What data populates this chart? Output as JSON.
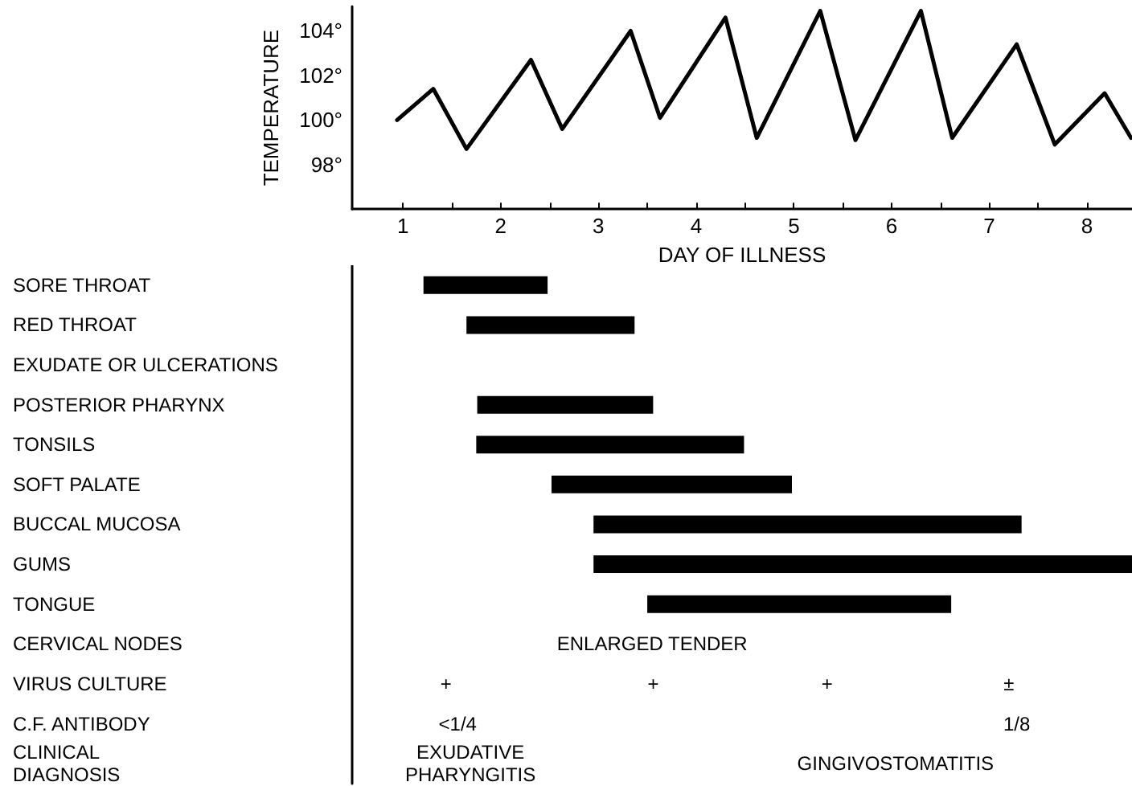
{
  "chart_data": [
    {
      "type": "line",
      "ylabel": "TEMPERATURE",
      "xlabel": "DAY OF ILLNESS",
      "xlim": [
        0.48,
        8.46
      ],
      "ylim": [
        96,
        105.1
      ],
      "xticks": [
        1,
        {
          "value": 1.5,
          "label": null
        },
        2,
        {
          "value": 2.5,
          "label": null
        },
        3,
        {
          "value": 3.5,
          "label": null
        },
        4,
        {
          "value": 4.5,
          "label": null
        },
        5,
        {
          "value": 5.5,
          "label": null
        },
        6,
        {
          "value": 6.5,
          "label": null
        },
        7,
        {
          "value": 7.5,
          "label": null
        },
        8
      ],
      "yticks": [
        {
          "value": 98,
          "label": "98°"
        },
        {
          "value": 100,
          "label": "100°"
        },
        {
          "value": 102,
          "label": "102°"
        },
        {
          "value": 104,
          "label": "104°"
        }
      ],
      "grid": false,
      "marker": "none",
      "line_style": "solid",
      "series": [
        {
          "color": "#000000",
          "x": [
            0.94,
            1.31,
            1.65,
            2.31,
            2.63,
            3.33,
            3.63,
            4.3,
            4.62,
            5.27,
            5.63,
            6.3,
            6.62,
            7.28,
            7.67,
            8.18,
            8.45
          ],
          "values": [
            100,
            101.4,
            98.7,
            102.7,
            99.6,
            104,
            100.1,
            104.6,
            99.2,
            104.9,
            99.1,
            104.9,
            99.2,
            103.4,
            98.9,
            101.2,
            99.2
          ]
        }
      ]
    },
    {
      "type": "bar",
      "orientation": "horizontal",
      "xlim": [
        0.48,
        8.46
      ],
      "tick_labels": "y",
      "grid": false,
      "categories": [
        "SORE THROAT",
        "RED THROAT",
        "EXUDATE OR ULCERATIONS",
        "POSTERIOR PHARYNX",
        "TONSILS",
        "SOFT PALATE",
        "BUCCAL MUCOSA",
        "GUMS",
        "TONGUE",
        "CERVICAL NODES",
        "VIRUS CULTURE",
        "C.F. ANTIBODY",
        "CLINICAL\nDIAGNOSIS"
      ],
      "series": [
        {
          "color": "#000000",
          "base": [
            1.21,
            1.65,
            null,
            1.76,
            1.75,
            2.52,
            2.95,
            2.95,
            3.5,
            null,
            null,
            null,
            null
          ],
          "values": [
            1.27,
            1.72,
            null,
            1.8,
            2.74,
            2.46,
            4.38,
            5.51,
            3.11,
            null,
            null,
            null,
            null
          ]
        }
      ],
      "annotations": [
        "ENLARGED TENDER",
        "+",
        "+",
        "+",
        "±",
        "<1/4",
        "1/8",
        "EXUDATIVE\nPHARYNGITIS",
        "GINGIVOSTOMATITIS"
      ]
    }
  ]
}
